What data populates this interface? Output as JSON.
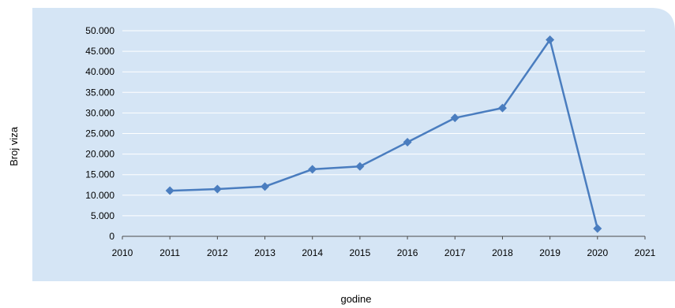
{
  "chart_data": {
    "type": "scatter",
    "x": [
      2011,
      2012,
      2013,
      2014,
      2015,
      2016,
      2017,
      2018,
      2019,
      2020
    ],
    "y": [
      11100,
      11500,
      12100,
      16300,
      17000,
      22900,
      28800,
      31200,
      47800,
      1900
    ],
    "xlabel": "godine",
    "ylabel": "Broj viza",
    "xlim": [
      2010,
      2021
    ],
    "ylim": [
      0,
      50000
    ],
    "x_ticks": [
      "2010",
      "2011",
      "2012",
      "2013",
      "2014",
      "2015",
      "2016",
      "2017",
      "2018",
      "2019",
      "2020",
      "2021"
    ],
    "y_ticks": [
      "0",
      "5.000",
      "10.000",
      "15.000",
      "20.000",
      "25.000",
      "30.000",
      "35.000",
      "40.000",
      "45.000",
      "50.000"
    ],
    "grid": "horizontal",
    "colors": {
      "plot_background": "#d5e5f5",
      "series": "#4a7dbf",
      "gridline": "#ffffff",
      "axis": "#4a4a4a"
    }
  }
}
